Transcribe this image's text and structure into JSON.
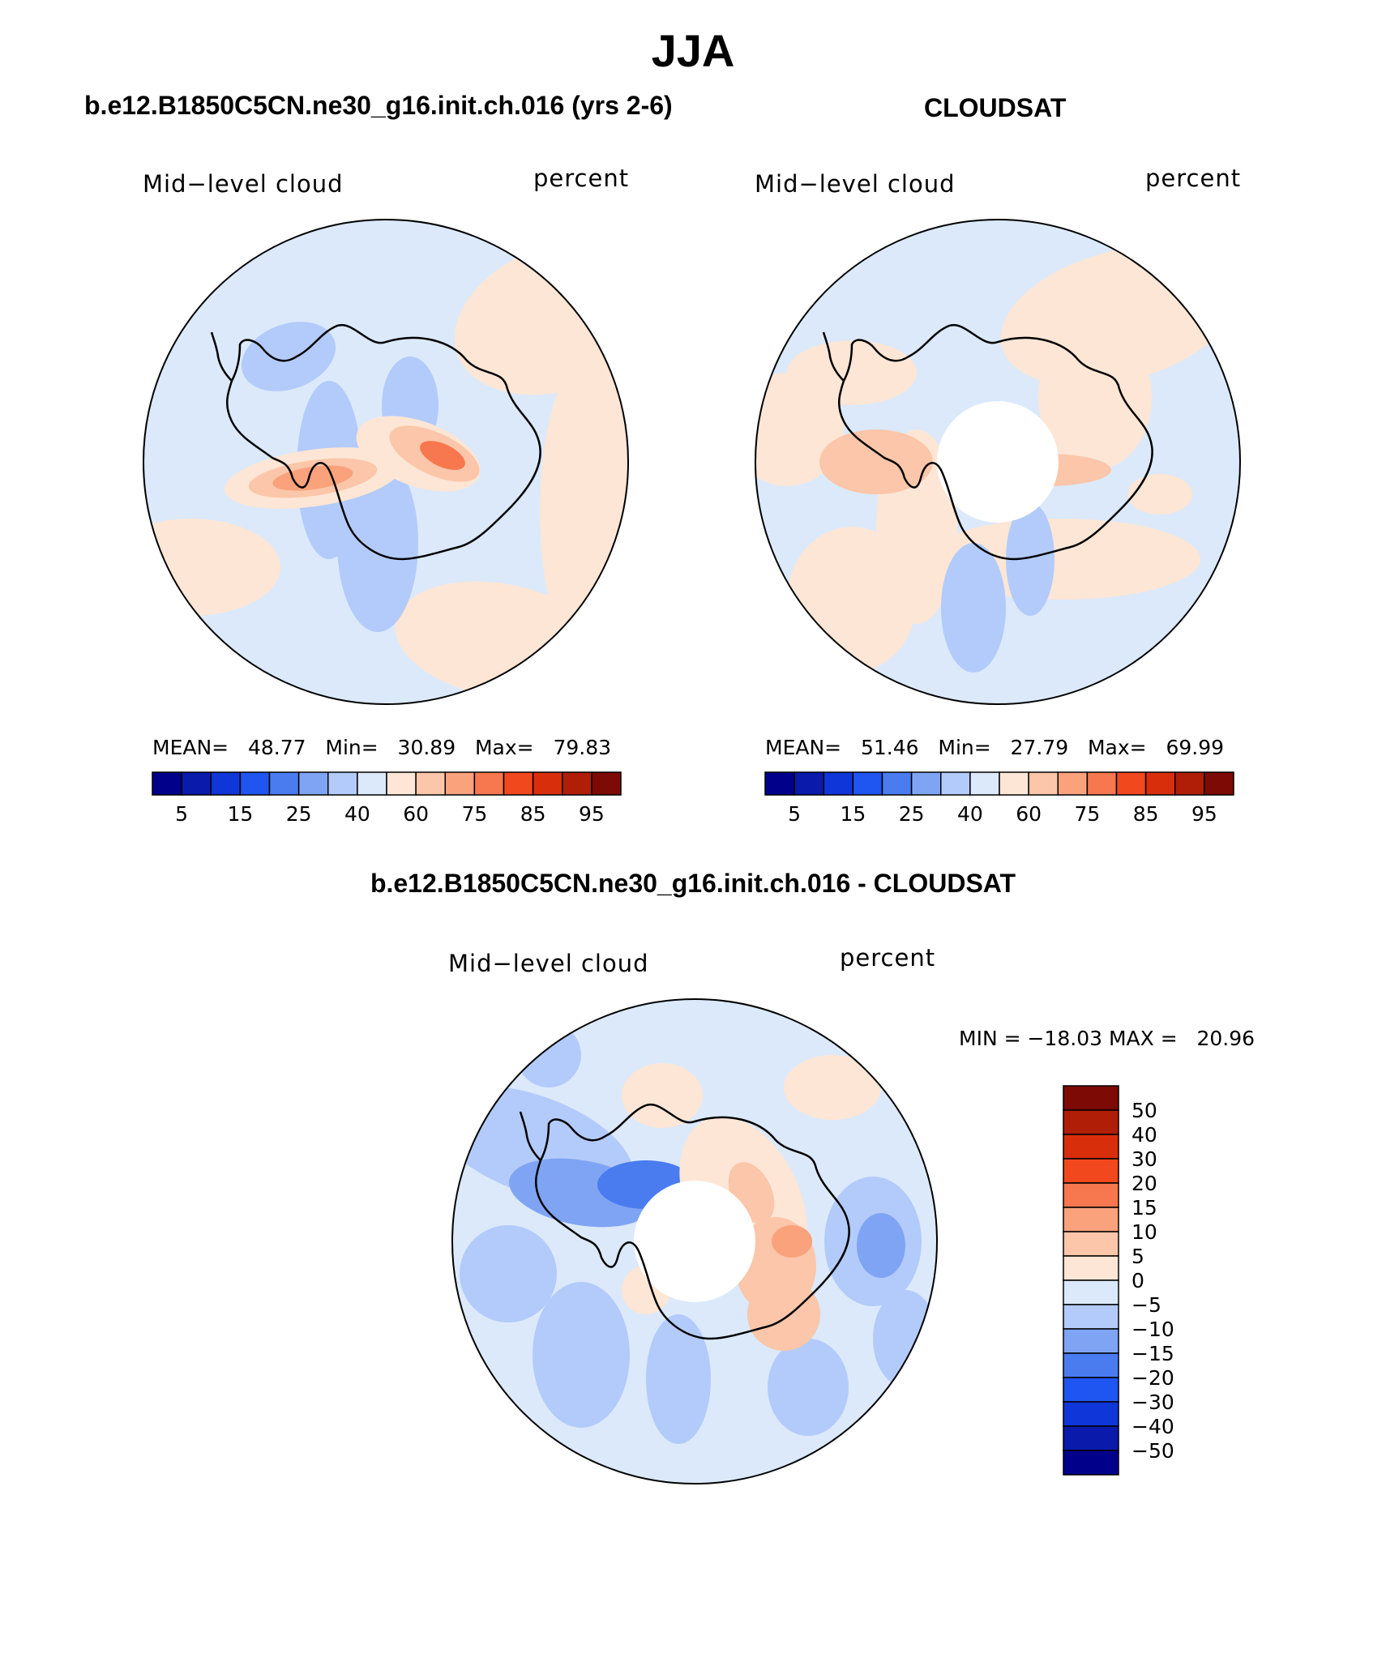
{
  "figure": {
    "title": "JJA"
  },
  "panels": [
    {
      "id": "model",
      "title": "b.e12.B1850C5CN.ne30_g16.init.ch.016 (yrs 2-6)",
      "label_left": "Mid−level cloud",
      "label_right": "percent",
      "stats": {
        "mean_label": "MEAN=",
        "mean": "48.77",
        "min_label": "Min=",
        "min": "30.89",
        "max_label": "Max=",
        "max": "79.83"
      }
    },
    {
      "id": "obs",
      "title": "CLOUDSAT",
      "label_left": "Mid−level cloud",
      "label_right": "percent",
      "stats": {
        "mean_label": "MEAN=",
        "mean": "51.46",
        "min_label": "Min=",
        "min": "27.79",
        "max_label": "Max=",
        "max": "69.99"
      }
    },
    {
      "id": "diff",
      "title": "b.e12.B1850C5CN.ne30_g16.init.ch.016 - CLOUDSAT",
      "label_left": "Mid−level cloud",
      "label_right": "percent",
      "stats_text": "MIN = −18.03 MAX =   20.96"
    }
  ],
  "chart_data": [
    {
      "type": "heatmap",
      "projection": "south-polar-stereographic",
      "title": "b.e12.B1850C5CN.ne30_g16.init.ch.016 (yrs 2-6)",
      "variable": "Mid-level cloud",
      "units": "percent",
      "mean": 48.77,
      "min": 30.89,
      "max": 79.83,
      "colorbar": {
        "orientation": "horizontal",
        "levels": [
          5,
          10,
          15,
          20,
          25,
          30,
          40,
          50,
          60,
          65,
          75,
          80,
          85,
          90,
          95
        ],
        "tick_labels": [
          "5",
          "15",
          "25",
          "40",
          "60",
          "75",
          "85",
          "95"
        ]
      }
    },
    {
      "type": "heatmap",
      "projection": "south-polar-stereographic",
      "title": "CLOUDSAT",
      "variable": "Mid-level cloud",
      "units": "percent",
      "mean": 51.46,
      "min": 27.79,
      "max": 69.99,
      "colorbar": {
        "orientation": "horizontal",
        "levels": [
          5,
          10,
          15,
          20,
          25,
          30,
          40,
          50,
          60,
          65,
          75,
          80,
          85,
          90,
          95
        ],
        "tick_labels": [
          "5",
          "15",
          "25",
          "40",
          "60",
          "75",
          "85",
          "95"
        ]
      }
    },
    {
      "type": "heatmap",
      "projection": "south-polar-stereographic",
      "title": "b.e12.B1850C5CN.ne30_g16.init.ch.016 - CLOUDSAT",
      "variable": "Mid-level cloud",
      "units": "percent",
      "min": -18.03,
      "max": 20.96,
      "colorbar": {
        "orientation": "vertical",
        "tick_labels": [
          "50",
          "40",
          "30",
          "20",
          "15",
          "10",
          "5",
          "0",
          "−5",
          "−10",
          "−15",
          "−20",
          "−30",
          "−40",
          "−50"
        ]
      }
    }
  ],
  "colors": {
    "scale": [
      "#00008b",
      "#0a1aaa",
      "#0f36d8",
      "#1f55f0",
      "#4a7cf0",
      "#7fa4f4",
      "#b3cbfa",
      "#dbe9fb",
      "#fde6d5",
      "#fbc6a9",
      "#f9a27c",
      "#f7774e",
      "#f1481e",
      "#d92e0c",
      "#b01e08",
      "#7d0a04"
    ],
    "coast": "#000000"
  }
}
